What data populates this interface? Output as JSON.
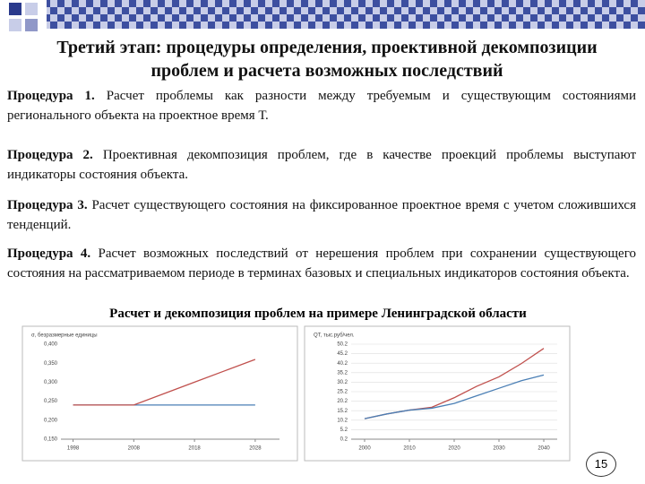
{
  "header": {
    "title": "Третий этап: процедуры определения, проективной декомпозиции проблем и расчета возможных последствий"
  },
  "procedures": [
    {
      "label": "Процедура 1.",
      "text": "Расчет проблемы как разности между требуемым и существующим состояниями регионального объекта на проектное время Т."
    },
    {
      "label": "Процедура 2.",
      "text": "Проективная декомпозиция проблем, где в качестве проекций проблемы выступают индикаторы состояния объекта."
    },
    {
      "label": "Процедура 3.",
      "text": "Расчет существующего состояния на фиксированное проектное время с учетом сложившихся тенденций."
    },
    {
      "label": "Процедура 4.",
      "text": "Расчет возможных последствий от нерешения проблем при сохранении существующего состояния на рассматриваемом периоде в терминах базовых и специальных индикаторов состояния объекта."
    }
  ],
  "figure_caption": "Расчет и декомпозиция проблем на примере Ленинградской области",
  "chart_data": [
    {
      "type": "line",
      "y_label": "σ, безразмерные единицы",
      "x": [
        1998,
        2003,
        2008,
        2013,
        2018,
        2023,
        2028
      ],
      "series": [
        {
          "color": "#4a7fb5",
          "values": [
            0.24,
            0.24,
            0.24,
            0.24,
            0.24,
            0.24,
            0.24
          ]
        },
        {
          "color": "#c0504d",
          "values": [
            0.24,
            0.24,
            0.24,
            0.27,
            0.3,
            0.33,
            0.36
          ]
        }
      ],
      "xlim": [
        1996,
        2032
      ],
      "xticks": [
        1998,
        2008,
        2018,
        2028
      ],
      "ylim": [
        0.15,
        0.4
      ],
      "yticks": [
        {
          "value": 0.15,
          "label": "0,150"
        },
        {
          "value": 0.2,
          "label": "0,200"
        },
        {
          "value": 0.25,
          "label": "0,250"
        },
        {
          "value": 0.3,
          "label": "0,300"
        },
        {
          "value": 0.35,
          "label": "0,350"
        },
        {
          "value": 0.4,
          "label": "0,400"
        }
      ],
      "grid": false
    },
    {
      "type": "line",
      "y_label": "QT, тыс.руб/чел.",
      "x": [
        2000,
        2005,
        2010,
        2015,
        2020,
        2025,
        2030,
        2035,
        2040
      ],
      "series": [
        {
          "color": "#c0504d",
          "values": [
            11,
            13.5,
            15.5,
            17,
            22,
            28,
            33,
            40,
            48
          ]
        },
        {
          "color": "#4a7fb5",
          "values": [
            11,
            13.5,
            15.5,
            16.5,
            19,
            23,
            27,
            31,
            34
          ]
        }
      ],
      "xlim": [
        1997,
        2043
      ],
      "xticks": [
        2000,
        2010,
        2020,
        2030,
        2040
      ],
      "ylim": [
        0.2,
        50.2
      ],
      "yticks": [
        0.2,
        5.2,
        10.2,
        15.2,
        20.2,
        25.2,
        30.2,
        35.2,
        40.2,
        45.2,
        50.2
      ],
      "grid": true
    }
  ],
  "page_number": "15"
}
